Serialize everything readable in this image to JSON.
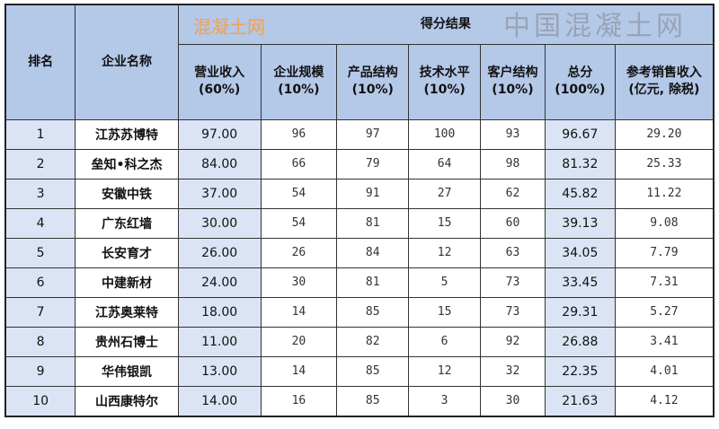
{
  "header": {
    "rank": "排名",
    "name": "企业名称",
    "group": "得分结果",
    "cols": [
      {
        "l1": "营业收入",
        "l2": "(60%)"
      },
      {
        "l1": "企业规模",
        "l2": "(10%)"
      },
      {
        "l1": "产品结构",
        "l2": "(10%)"
      },
      {
        "l1": "技术水平",
        "l2": "(10%)"
      },
      {
        "l1": "客户结构",
        "l2": "(10%)"
      },
      {
        "l1": "总分",
        "l2": "(100%)"
      },
      {
        "l1": "参考销售收入",
        "l2": "(亿元, 除税)"
      }
    ]
  },
  "rows": [
    [
      "1",
      "江苏苏博特",
      "97.00",
      "96",
      "97",
      "100",
      "93",
      "96.67",
      "29.20"
    ],
    [
      "2",
      "垒知•科之杰",
      "84.00",
      "66",
      "79",
      "64",
      "98",
      "81.32",
      "25.33"
    ],
    [
      "3",
      "安徽中铁",
      "37.00",
      "54",
      "91",
      "27",
      "62",
      "45.82",
      "11.22"
    ],
    [
      "4",
      "广东红墙",
      "30.00",
      "54",
      "81",
      "15",
      "60",
      "39.13",
      "9.08"
    ],
    [
      "5",
      "长安育才",
      "26.00",
      "26",
      "84",
      "12",
      "63",
      "34.05",
      "7.79"
    ],
    [
      "6",
      "中建新材",
      "24.00",
      "30",
      "81",
      "5",
      "73",
      "33.45",
      "7.31"
    ],
    [
      "7",
      "江苏奥莱特",
      "18.00",
      "14",
      "85",
      "15",
      "73",
      "29.31",
      "5.27"
    ],
    [
      "8",
      "贵州石博士",
      "11.00",
      "20",
      "82",
      "6",
      "92",
      "26.88",
      "3.41"
    ],
    [
      "9",
      "华伟银凯",
      "13.00",
      "14",
      "85",
      "12",
      "32",
      "22.35",
      "4.01"
    ],
    [
      "10",
      "山西康特尔",
      "14.00",
      "16",
      "85",
      "3",
      "30",
      "21.63",
      "4.12"
    ]
  ],
  "watermark": {
    "main": "中国混凝土网",
    "small": "混凝土网"
  },
  "colors": {
    "header_bg": "#b4c8e8",
    "shaded_bg": "#dbe4f4",
    "watermark_orange": "#f5a04a"
  }
}
